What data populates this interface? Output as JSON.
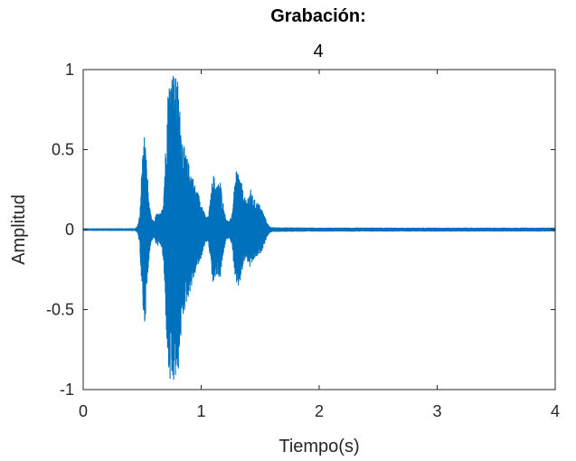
{
  "chart_data": {
    "type": "line",
    "title": "Grabación:",
    "subtitle": "4",
    "xlabel": "Tiempo(s)",
    "ylabel": "Amplitud",
    "xlim": [
      0,
      4
    ],
    "ylim": [
      -1,
      1
    ],
    "xticks": [
      "0",
      "1",
      "2",
      "3",
      "4"
    ],
    "yticks": [
      "1",
      "0.5",
      "0",
      "-0.5",
      "-1"
    ],
    "grid": false,
    "line_color": "#0072BD",
    "series": [
      {
        "envelope": [
          [
            0.0,
            0.005
          ],
          [
            0.44,
            0.006
          ],
          [
            0.46,
            0.02
          ],
          [
            0.48,
            0.1
          ],
          [
            0.5,
            0.45
          ],
          [
            0.52,
            0.62
          ],
          [
            0.54,
            0.4
          ],
          [
            0.56,
            0.15
          ],
          [
            0.58,
            0.07
          ],
          [
            0.6,
            0.05
          ],
          [
            0.62,
            0.1
          ],
          [
            0.64,
            0.1
          ],
          [
            0.66,
            0.1
          ],
          [
            0.68,
            0.2
          ],
          [
            0.7,
            0.55
          ],
          [
            0.72,
            0.9
          ],
          [
            0.74,
            1.0
          ],
          [
            0.76,
            1.0
          ],
          [
            0.78,
            0.95
          ],
          [
            0.8,
            0.95
          ],
          [
            0.82,
            0.75
          ],
          [
            0.84,
            0.58
          ],
          [
            0.86,
            0.5
          ],
          [
            0.88,
            0.45
          ],
          [
            0.9,
            0.4
          ],
          [
            0.92,
            0.36
          ],
          [
            0.94,
            0.3
          ],
          [
            0.96,
            0.25
          ],
          [
            0.98,
            0.22
          ],
          [
            1.0,
            0.18
          ],
          [
            1.02,
            0.12
          ],
          [
            1.04,
            0.08
          ],
          [
            1.06,
            0.08
          ],
          [
            1.08,
            0.2
          ],
          [
            1.1,
            0.36
          ],
          [
            1.12,
            0.3
          ],
          [
            1.14,
            0.28
          ],
          [
            1.16,
            0.32
          ],
          [
            1.18,
            0.2
          ],
          [
            1.2,
            0.1
          ],
          [
            1.22,
            0.06
          ],
          [
            1.24,
            0.05
          ],
          [
            1.26,
            0.1
          ],
          [
            1.28,
            0.25
          ],
          [
            1.3,
            0.38
          ],
          [
            1.32,
            0.36
          ],
          [
            1.34,
            0.3
          ],
          [
            1.36,
            0.22
          ],
          [
            1.38,
            0.18
          ],
          [
            1.4,
            0.22
          ],
          [
            1.42,
            0.25
          ],
          [
            1.44,
            0.2
          ],
          [
            1.46,
            0.18
          ],
          [
            1.48,
            0.17
          ],
          [
            1.5,
            0.15
          ],
          [
            1.52,
            0.12
          ],
          [
            1.54,
            0.08
          ],
          [
            1.56,
            0.04
          ],
          [
            1.58,
            0.02
          ],
          [
            1.6,
            0.012
          ],
          [
            2.0,
            0.01
          ],
          [
            3.0,
            0.01
          ],
          [
            4.0,
            0.01
          ]
        ]
      }
    ]
  }
}
